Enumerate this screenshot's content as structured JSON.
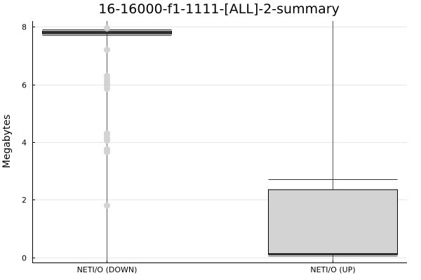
{
  "chart_data": {
    "type": "box",
    "title": "16-16000-f1-1111-[ALL]-2-summary",
    "xlabel": "",
    "ylabel": "Megabytes",
    "ylim": [
      -0.2,
      8.2
    ],
    "yticks": [
      0,
      2,
      4,
      6,
      8
    ],
    "grid": true,
    "legend": "none",
    "categories": [
      "NETI/O (DOWN)",
      "NETI/O (UP)"
    ],
    "boxes": [
      {
        "category": "NETI/O (DOWN)",
        "whisker_low": 7.7,
        "q1": 7.75,
        "median": 7.8,
        "q3": 7.85,
        "whisker_high": 7.9,
        "line_low": -0.2,
        "line_high": 8.2,
        "outliers": [
          7.95,
          7.2,
          6.3,
          6.2,
          6.1,
          6.0,
          5.95,
          5.85,
          4.3,
          4.25,
          4.15,
          4.1,
          4.05,
          3.75,
          3.7,
          3.65,
          1.8
        ]
      },
      {
        "category": "NETI/O (UP)",
        "whisker_low": 0.05,
        "q1": 0.1,
        "median": 0.12,
        "q3": 2.35,
        "whisker_high": 2.7,
        "line_low": -0.2,
        "line_high": 8.2,
        "outliers": []
      }
    ],
    "colors": {
      "box_fill": "#d3d3d3",
      "box_stroke": "#000000",
      "outlier": "#d3d3d3",
      "center_line": "#555555"
    }
  }
}
